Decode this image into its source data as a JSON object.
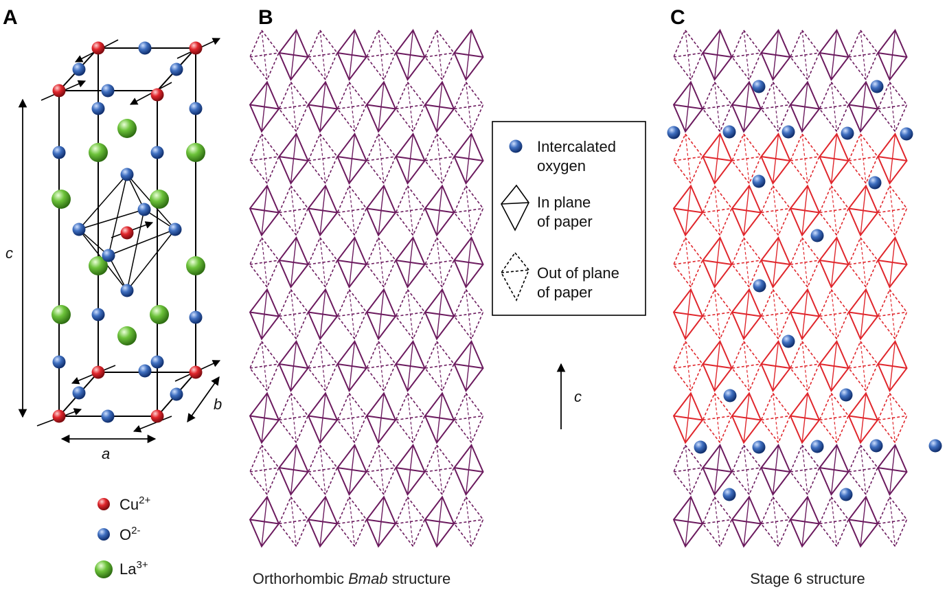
{
  "panels": {
    "a": {
      "letter": "A"
    },
    "b": {
      "letter": "B"
    },
    "c": {
      "letter": "C"
    }
  },
  "unit_cell": {
    "axis_a": "a",
    "axis_b": "b",
    "axis_c": "c"
  },
  "ion_legend": {
    "cu": {
      "base": "Cu",
      "sup": "2+",
      "color": "#d9232f"
    },
    "o": {
      "base": "O",
      "sup": "2-",
      "color": "#2f5aa8"
    },
    "la": {
      "base": "La",
      "sup": "3+",
      "color": "#5cb82c"
    }
  },
  "legend": {
    "intercalated": [
      "Intercalated",
      "oxygen"
    ],
    "in_plane": [
      "In plane",
      "of paper"
    ],
    "out_plane": [
      "Out of plane",
      "of paper"
    ]
  },
  "c_arrow_label": "c",
  "captions": {
    "b_pre": "Orthorhombic ",
    "b_ital": "Bmab",
    "b_post": " structure",
    "c": "Stage 6 structure"
  },
  "colors": {
    "purple": "#6b1a5e",
    "red": "#e0262c"
  },
  "stage6_row_colors": [
    "purple",
    "purple",
    "red",
    "red",
    "red",
    "red",
    "red",
    "red",
    "purple",
    "purple"
  ]
}
